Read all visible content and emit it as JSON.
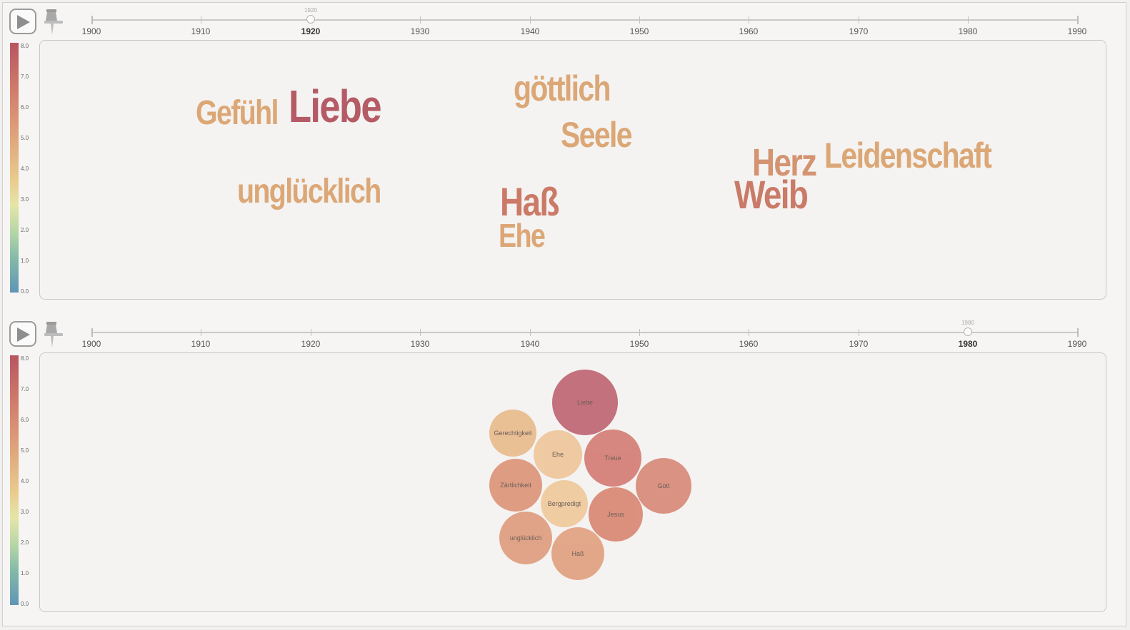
{
  "timeline": {
    "years": [
      "1900",
      "1910",
      "1920",
      "1930",
      "1940",
      "1950",
      "1960",
      "1970",
      "1980",
      "1990"
    ]
  },
  "legend": {
    "labels": [
      "8.0",
      "7.0",
      "6.0",
      "5.0",
      "4.0",
      "3.0",
      "2.0",
      "1.0",
      "0.0"
    ]
  },
  "top": {
    "selected_year": "1920",
    "handle_fraction": 0.222,
    "words": [
      {
        "text": "Gefühl",
        "color": "#dca776"
      },
      {
        "text": "Liebe",
        "color": "#b55b66"
      },
      {
        "text": "göttlich",
        "color": "#dca776"
      },
      {
        "text": "Seele",
        "color": "#dca776"
      },
      {
        "text": "unglücklich",
        "color": "#dca776"
      },
      {
        "text": "Haß",
        "color": "#cc7a68"
      },
      {
        "text": "Ehe",
        "color": "#dca776"
      },
      {
        "text": "Herz",
        "color": "#d49371"
      },
      {
        "text": "Leidenschaft",
        "color": "#dca776"
      },
      {
        "text": "Weib",
        "color": "#c97b68"
      }
    ]
  },
  "bottom": {
    "selected_year": "1980",
    "handle_fraction": 0.889,
    "bubbles": [
      {
        "label": "Liebe",
        "color": "#bd606d"
      },
      {
        "label": "Gerechtigkeit",
        "color": "#e8b888"
      },
      {
        "label": "Ehe",
        "color": "#eec497"
      },
      {
        "label": "Treue",
        "color": "#d27870"
      },
      {
        "label": "Gott",
        "color": "#d78573"
      },
      {
        "label": "Zärtlichkeit",
        "color": "#dc9173"
      },
      {
        "label": "Bergpredigt",
        "color": "#efc797"
      },
      {
        "label": "Jesus",
        "color": "#d8836f"
      },
      {
        "label": "unglücklich",
        "color": "#de9879"
      },
      {
        "label": "Haß",
        "color": "#e09d7a"
      }
    ]
  }
}
